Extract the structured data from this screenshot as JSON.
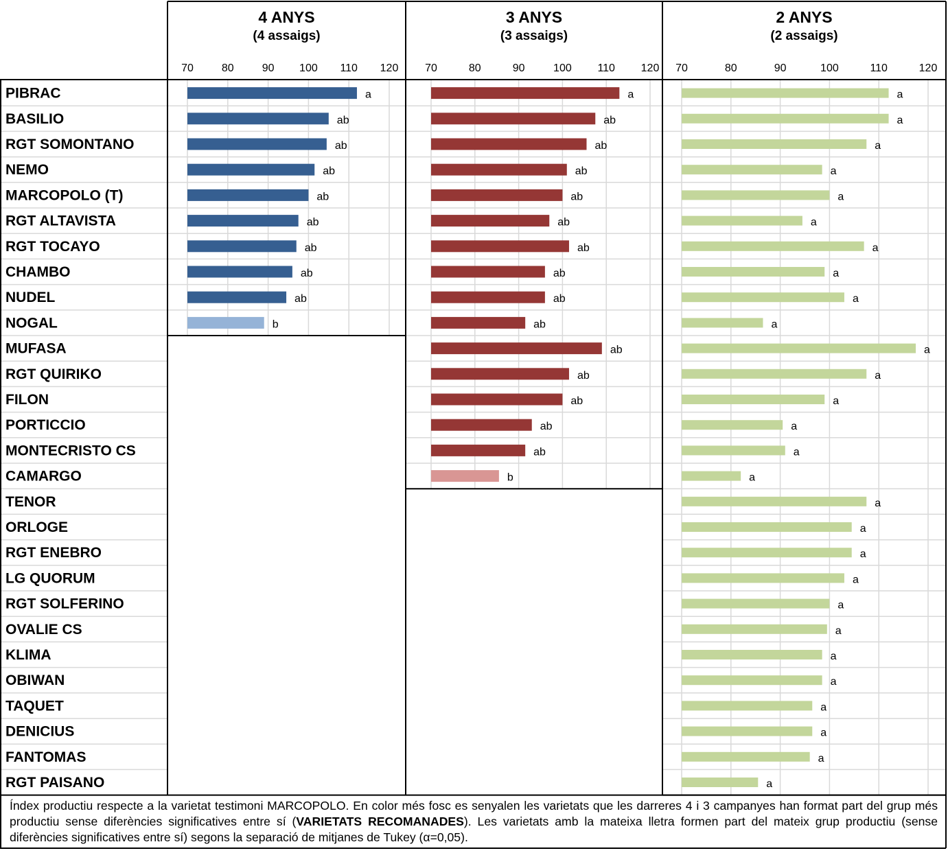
{
  "panels": [
    {
      "title": "4 ANYS",
      "subtitle": "(4 assaigs)"
    },
    {
      "title": "3 ANYS",
      "subtitle": "(3 assaigs)"
    },
    {
      "title": "2 ANYS",
      "subtitle": "(2 assaigs)"
    }
  ],
  "footnote": {
    "part1": "Índex productiu respecte a la varietat testimoni MARCOPOLO. En color més fosc es senyalen les varietats que les darreres 4 i 3 campanyes han format part del grup més productiu sense diferències significatives entre sí (",
    "bold": "VARIETATS RECOMANADES",
    "part2": "). Les varietats amb la mateixa lletra formen part del mateix grup productiu (sense diferències significatives entre sí) segons la separació de mitjanes de Tukey (α=0,05)."
  },
  "colors": {
    "panel1_recommended": "#365f91",
    "panel1_other": "#95b3d7",
    "panel2_recommended": "#953735",
    "panel2_other": "#d99694",
    "panel3": "#c3d69b",
    "grid": "#d9d9d9",
    "border": "#000000"
  },
  "chart_data": [
    {
      "type": "bar",
      "orientation": "horizontal",
      "title": "4 ANYS",
      "subtitle": "(4 assaigs)",
      "xlim": [
        70,
        120
      ],
      "ticks": [
        70,
        80,
        90,
        100,
        110,
        120
      ],
      "grid": true,
      "categories": [
        "PIBRAC",
        "BASILIO",
        "RGT SOMONTANO",
        "NEMO",
        "MARCOPOLO (T)",
        "RGT ALTAVISTA",
        "RGT TOCAYO",
        "CHAMBO",
        "NUDEL",
        "NOGAL"
      ],
      "values": [
        112,
        105,
        104.5,
        101.5,
        100,
        97.5,
        97,
        96,
        94.5,
        89
      ],
      "labels": [
        "a",
        "ab",
        "ab",
        "ab",
        "ab",
        "ab",
        "ab",
        "ab",
        "ab",
        "b"
      ],
      "recommended": [
        true,
        true,
        true,
        true,
        true,
        true,
        true,
        true,
        true,
        false
      ]
    },
    {
      "type": "bar",
      "orientation": "horizontal",
      "title": "3 ANYS",
      "subtitle": "(3 assaigs)",
      "xlim": [
        70,
        120
      ],
      "ticks": [
        70,
        80,
        90,
        100,
        110,
        120
      ],
      "grid": true,
      "categories": [
        "PIBRAC",
        "BASILIO",
        "RGT SOMONTANO",
        "NEMO",
        "MARCOPOLO (T)",
        "RGT ALTAVISTA",
        "RGT TOCAYO",
        "CHAMBO",
        "NUDEL",
        "NOGAL",
        "MUFASA",
        "RGT QUIRIKO",
        "FILON",
        "PORTICCIO",
        "MONTECRISTO CS",
        "CAMARGO"
      ],
      "values": [
        113,
        107.5,
        105.5,
        101,
        100,
        97,
        101.5,
        96,
        96,
        91.5,
        109,
        101.5,
        100,
        93,
        91.5,
        85.5
      ],
      "labels": [
        "a",
        "ab",
        "ab",
        "ab",
        "ab",
        "ab",
        "ab",
        "ab",
        "ab",
        "ab",
        "ab",
        "ab",
        "ab",
        "ab",
        "ab",
        "b"
      ],
      "recommended": [
        true,
        true,
        true,
        true,
        true,
        true,
        true,
        true,
        true,
        true,
        true,
        true,
        true,
        true,
        true,
        false
      ]
    },
    {
      "type": "bar",
      "orientation": "horizontal",
      "title": "2 ANYS",
      "subtitle": "(2 assaigs)",
      "xlim": [
        70,
        120
      ],
      "ticks": [
        70,
        80,
        90,
        100,
        110,
        120
      ],
      "grid": true,
      "categories": [
        "PIBRAC",
        "BASILIO",
        "RGT SOMONTANO",
        "NEMO",
        "MARCOPOLO (T)",
        "RGT ALTAVISTA",
        "RGT TOCAYO",
        "CHAMBO",
        "NUDEL",
        "NOGAL",
        "MUFASA",
        "RGT QUIRIKO",
        "FILON",
        "PORTICCIO",
        "MONTECRISTO CS",
        "CAMARGO",
        "TENOR",
        "ORLOGE",
        "RGT ENEBRO",
        "LG QUORUM",
        "RGT SOLFERINO",
        "OVALIE CS",
        "KLIMA",
        "OBIWAN",
        "TAQUET",
        "DENICIUS",
        "FANTOMAS",
        "RGT PAISANO"
      ],
      "values": [
        112,
        112,
        107.5,
        98.5,
        100,
        94.5,
        107,
        99,
        103,
        86.5,
        117.5,
        107.5,
        99,
        90.5,
        91,
        82,
        107.5,
        104.5,
        104.5,
        103,
        100,
        99.5,
        98.5,
        98.5,
        96.5,
        96.5,
        96,
        85.5
      ],
      "labels": [
        "a",
        "a",
        "a",
        "a",
        "a",
        "a",
        "a",
        "a",
        "a",
        "a",
        "a",
        "a",
        "a",
        "a",
        "a",
        "a",
        "a",
        "a",
        "a",
        "a",
        "a",
        "a",
        "a",
        "a",
        "a",
        "a",
        "a",
        "a"
      ]
    }
  ]
}
